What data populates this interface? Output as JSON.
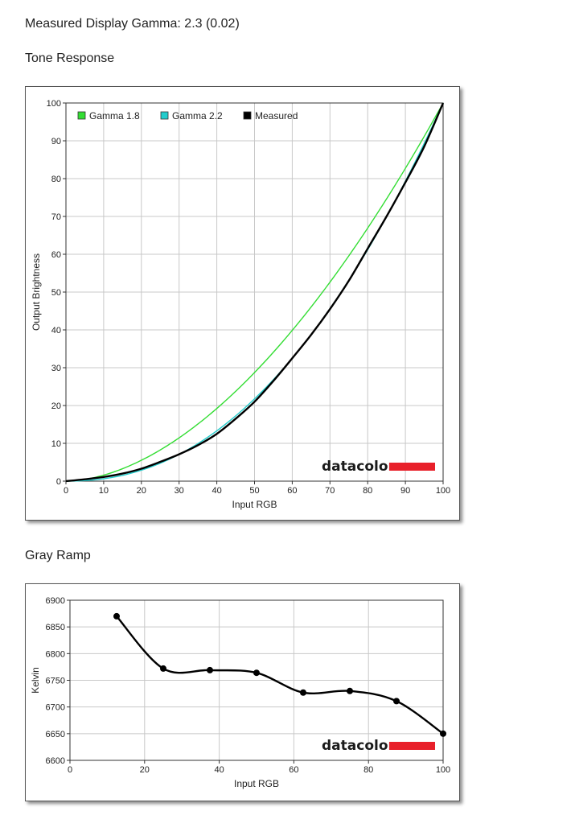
{
  "header": {
    "gamma_text": "Measured Display Gamma: 2.3 (0.02)",
    "tone_title": "Tone Response",
    "gray_title": "Gray Ramp"
  },
  "logo": {
    "text": "datacolor",
    "bar_color": "#e8202a"
  },
  "chart_data": [
    {
      "type": "line",
      "title": "Tone Response",
      "xlabel": "Input RGB",
      "ylabel": "Output Brightness",
      "xlim": [
        0,
        100
      ],
      "ylim": [
        0,
        100
      ],
      "xticks": [
        0,
        10,
        20,
        30,
        40,
        50,
        60,
        70,
        80,
        90,
        100
      ],
      "yticks": [
        0,
        10,
        20,
        30,
        40,
        50,
        60,
        70,
        80,
        90,
        100
      ],
      "grid": true,
      "legend_position": "top-left",
      "series": [
        {
          "name": "Gamma 1.8",
          "color": "#33dd33",
          "gamma": 1.8
        },
        {
          "name": "Gamma 2.2",
          "color": "#22cccc",
          "gamma": 2.2
        },
        {
          "name": "Measured",
          "color": "#000000",
          "x": [
            0,
            5,
            10,
            15,
            20,
            25,
            30,
            35,
            40,
            45,
            50,
            55,
            60,
            65,
            70,
            75,
            80,
            85,
            90,
            95,
            100
          ],
          "y": [
            0,
            0.5,
            1.1,
            2,
            3.3,
            5.1,
            7.1,
            9.5,
            12.5,
            16.5,
            21,
            26.5,
            32.5,
            38.7,
            45.5,
            53,
            61.5,
            70,
            79,
            88.5,
            100
          ]
        }
      ]
    },
    {
      "type": "line",
      "title": "Gray Ramp",
      "xlabel": "Input RGB",
      "ylabel": "Kelvin",
      "xlim": [
        0,
        100
      ],
      "ylim": [
        6600,
        6900
      ],
      "xticks": [
        0,
        20,
        40,
        60,
        80,
        100
      ],
      "yticks": [
        6600,
        6650,
        6700,
        6750,
        6800,
        6850,
        6900
      ],
      "grid": true,
      "series": [
        {
          "name": "",
          "color": "#000000",
          "x": [
            12.5,
            25,
            37.5,
            50,
            62.5,
            75,
            87.5,
            100
          ],
          "y": [
            6870,
            6772,
            6769,
            6764,
            6727,
            6730,
            6711,
            6650
          ]
        }
      ]
    }
  ]
}
